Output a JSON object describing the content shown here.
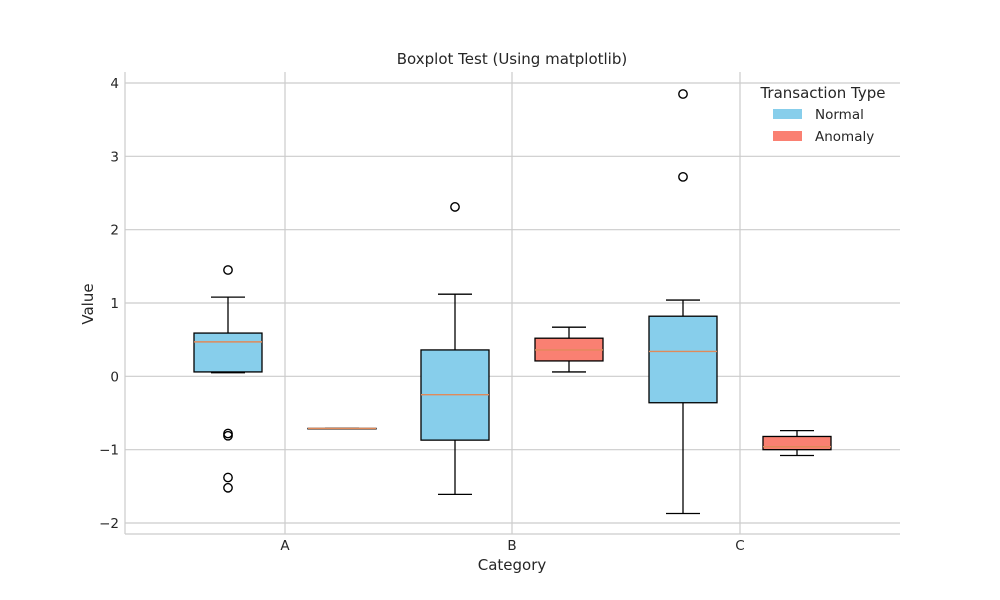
{
  "chart_data": {
    "type": "box",
    "title": "Boxplot Test (Using matplotlib)",
    "xlabel": "Category",
    "ylabel": "Value",
    "categories": [
      "A",
      "B",
      "C"
    ],
    "ylim": [
      -2.15,
      4.15
    ],
    "yticks": [
      -2,
      -1,
      0,
      1,
      2,
      3,
      4
    ],
    "ytick_labels": [
      "−2",
      "−1",
      "0",
      "1",
      "2",
      "3",
      "4"
    ],
    "grid": true,
    "legend": {
      "title": "Transaction Type",
      "placement": "top-right",
      "entries": [
        "Normal",
        "Anomaly"
      ]
    },
    "series": [
      {
        "name": "Normal",
        "color": "#87CEEB",
        "boxes": [
          {
            "category": "A",
            "whisker_low": 0.05,
            "q1": 0.06,
            "median": 0.47,
            "q3": 0.59,
            "whisker_high": 1.08,
            "outliers": [
              1.45,
              -0.78,
              -0.81,
              -1.38,
              -1.52
            ]
          },
          {
            "category": "B",
            "whisker_low": -1.61,
            "q1": -0.87,
            "median": -0.25,
            "q3": 0.36,
            "whisker_high": 1.12,
            "outliers": [
              2.31
            ]
          },
          {
            "category": "C",
            "whisker_low": -1.87,
            "q1": -0.36,
            "median": 0.34,
            "q3": 0.82,
            "whisker_high": 1.04,
            "outliers": [
              3.85,
              2.72
            ]
          }
        ]
      },
      {
        "name": "Anomaly",
        "color": "#FA8072",
        "boxes": [
          {
            "category": "A",
            "whisker_low": -0.71,
            "q1": -0.71,
            "median": -0.71,
            "q3": -0.71,
            "whisker_high": -0.71,
            "outliers": []
          },
          {
            "category": "B",
            "whisker_low": 0.06,
            "q1": 0.21,
            "median": 0.36,
            "q3": 0.52,
            "whisker_high": 0.67,
            "outliers": []
          },
          {
            "category": "C",
            "whisker_low": -1.08,
            "q1": -1.0,
            "median": -0.96,
            "q3": -0.82,
            "whisker_high": -0.74,
            "outliers": []
          }
        ]
      }
    ],
    "colors": {
      "median": "#E08A5A",
      "grid": "#CCCCCC",
      "axis": "#CCCCCC",
      "edge": "#000000"
    }
  }
}
